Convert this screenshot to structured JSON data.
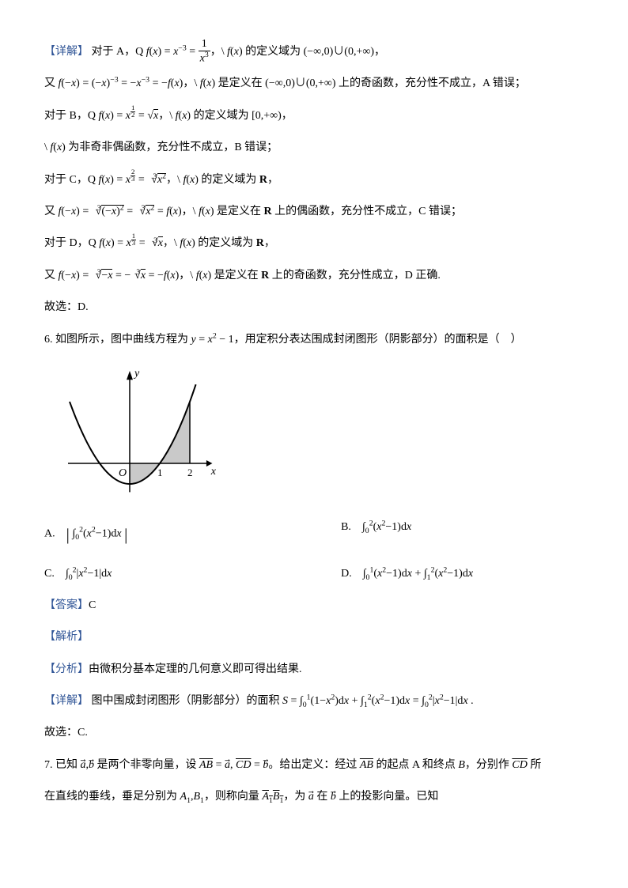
{
  "q5": {
    "detail_label": "【详解】",
    "lineA1": "对于 A，Q f(x) = x⁻³ = 1/x³，\\ f(x) 的定义域为 (−∞,0)∪(0,+∞)，",
    "lineA2": "又 f(−x) = (−x)⁻³ = −x⁻³ = −f(x)，\\ f(x) 是定义在 (−∞,0)∪(0,+∞) 上的奇函数，充分性不成立，A 错误；",
    "lineB1": "对于 B，Q f(x) = x^{1/2} = √x，\\ f(x) 的定义域为 [0,+∞)，",
    "lineB2": "\\ f(x) 为非奇非偶函数，充分性不成立，B 错误；",
    "lineC1_a": "对于 C，Q f(x) = x^{2/3} = ",
    "lineC1_b": "，\\ f(x) 的定义域为 R，",
    "lineC2_a": "又 f(−x) = ",
    "lineC2_b": " = f(x)，\\ f(x) 是定义在 R 上的偶函数，充分性不成立，C 错误；",
    "lineD1_a": "对于 D，Q f(x) = x^{1/3} = ",
    "lineD1_b": "，\\ f(x) 的定义域为 R，",
    "lineD2_a": "又 f(−x) = ",
    "lineD2_b": " = −f(x)，\\ f(x) 是定义在 R 上的奇函数，充分性成立，D 正确.",
    "choose": "故选：D."
  },
  "q6": {
    "num": "6. ",
    "stem": "如图所示，图中曲线方程为 y = x² − 1，用定积分表达围成封闭图形（阴影部分）的面积是（　）",
    "optA_pre": "A.　",
    "optA_math": "| ∫₀²(x²−1)dx |",
    "optB_pre": "B.　",
    "optB_math": "∫₀²(x²−1)dx",
    "optC_pre": "C.　",
    "optC_math": "∫₀²|x²−1|dx",
    "optD_pre": "D.　",
    "optD_math": "∫₀¹(x²−1)dx + ∫₁²(x²−1)dx",
    "ans_label": "【答案】",
    "ans": "C",
    "jiexi_label": "【解析】",
    "fenxi_label": "【分析】",
    "fenxi": "由微积分基本定理的几何意义即可得出结果.",
    "detail_label": "【详解】",
    "detail": "图中围成封闭图形（阴影部分）的面积 S = ∫₀¹(1−x²)dx + ∫₁²(x²−1)dx = ∫₀²|x²−1|dx .",
    "choose": "故选：C.",
    "chart": {
      "width": 190,
      "height": 180,
      "bg": "#ffffff",
      "axis_color": "#000000",
      "curve_color": "#000000",
      "shade_color": "#c9c9c9",
      "ox": 78,
      "oy": 130,
      "sx": 38,
      "sy": 26,
      "xmin": -2.0,
      "xmax": 2.2,
      "labels": {
        "y": "y",
        "x": "x",
        "O": "O",
        "t1": "1",
        "t2": "2"
      }
    }
  },
  "q7": {
    "num": "7. ",
    "line1_a": "已知 a͐, b͐ 是两个非零向量，设 ",
    "ab": "A͞B = a͐",
    "mid1": "，",
    "cd": "C͞D = b͐",
    "line1_b": "。给出定义：经过 A͞B 的起点 A 和终点 B，分别作 C͞D 所",
    "line2": "在直线的垂线，垂足分别为 A₁,B₁，则称向量 A͞₁B͞₁，为 a͐ 在 b͐ 上的投影向量。已知"
  }
}
